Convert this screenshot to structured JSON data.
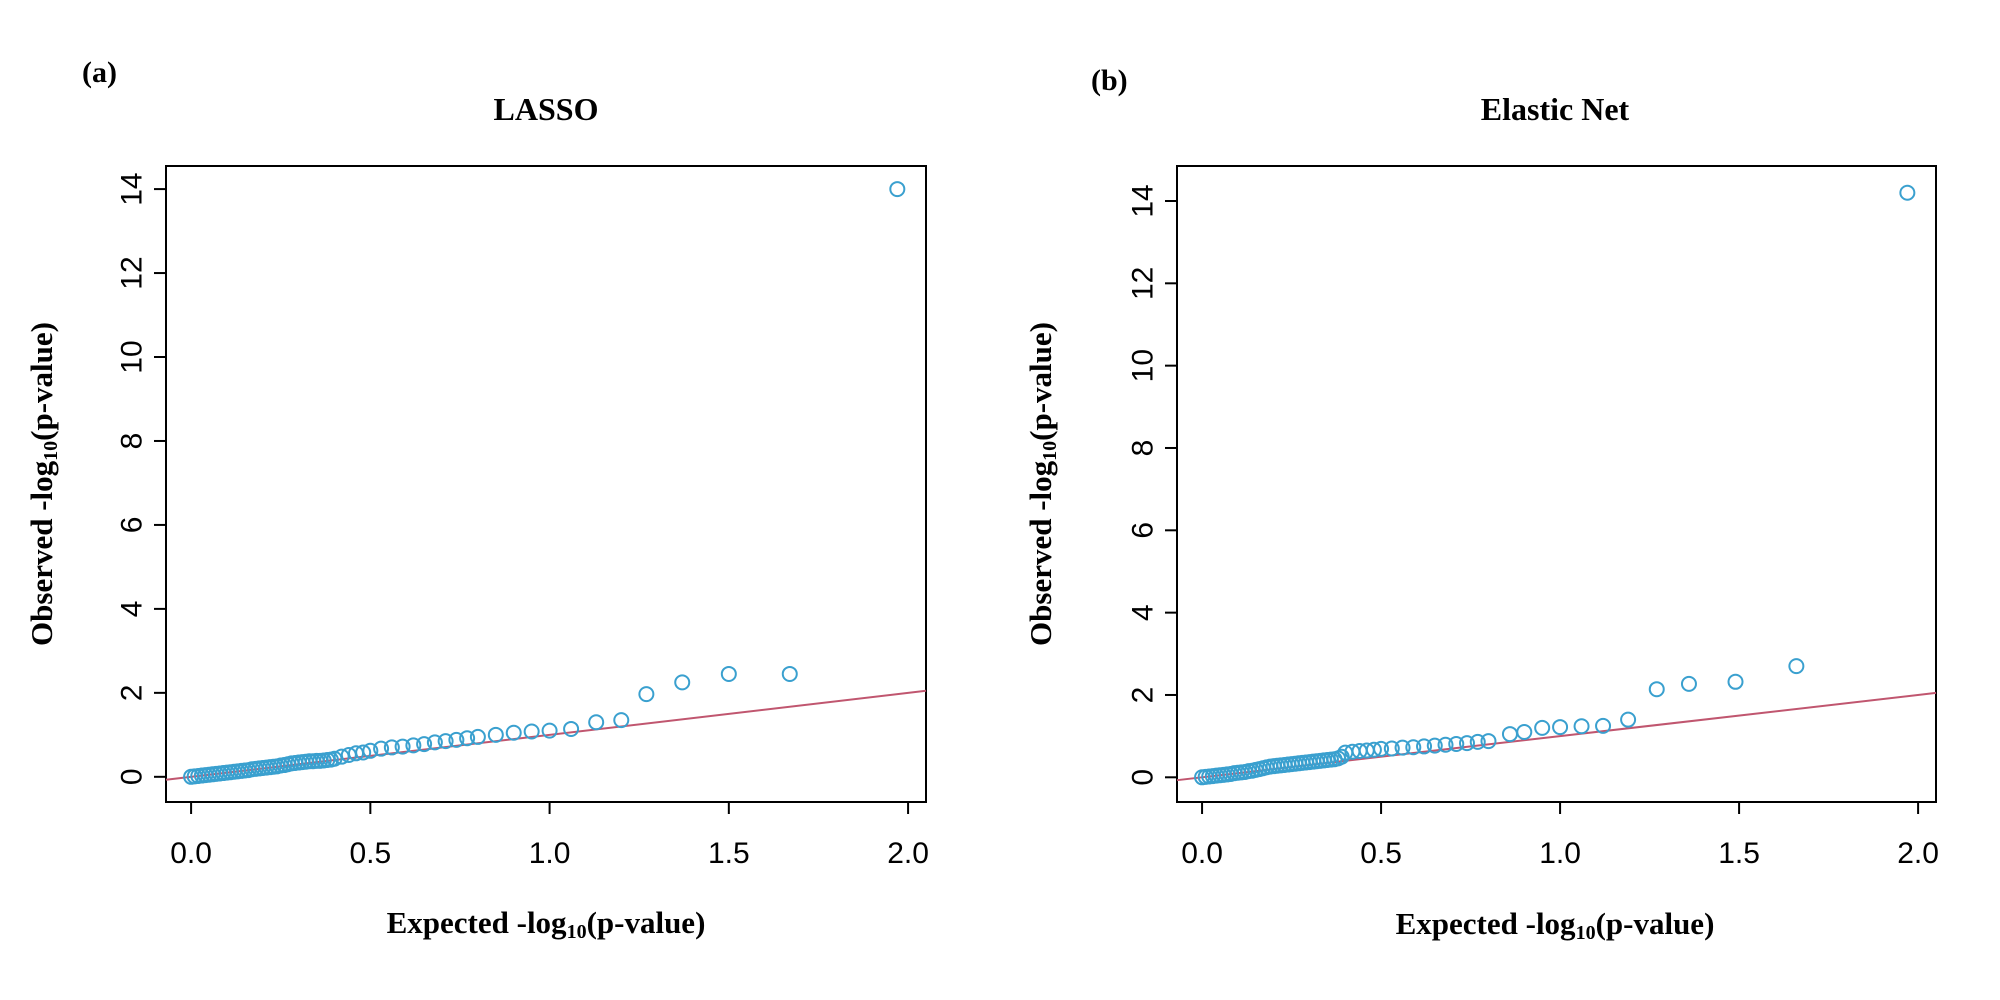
{
  "chart_data": [
    {
      "type": "scatter",
      "panel_label": "(a)",
      "title": "LASSO",
      "xlabel": {
        "pre": "Expected -log",
        "sub": "10",
        "post": "(p-value)"
      },
      "ylabel": {
        "pre": "Observed -log",
        "sub": "10",
        "post": "(p-value)"
      },
      "xlim": [
        -0.07,
        2.05
      ],
      "ylim": [
        -0.6,
        14.55
      ],
      "xticks": [
        0.0,
        0.5,
        1.0,
        1.5,
        2.0
      ],
      "xtick_labels": [
        "0.0",
        "0.5",
        "1.0",
        "1.5",
        "2.0"
      ],
      "yticks": [
        0,
        2,
        4,
        6,
        8,
        10,
        12,
        14
      ],
      "ytick_labels": [
        "0",
        "2",
        "4",
        "6",
        "8",
        "10",
        "12",
        "14"
      ],
      "reference_line": {
        "slope": 1,
        "intercept": 0,
        "color": "#c0566f"
      },
      "point_color": "#3aa0cf",
      "points": [
        [
          0.0,
          0.0
        ],
        [
          0.01,
          0.01
        ],
        [
          0.02,
          0.02
        ],
        [
          0.03,
          0.03
        ],
        [
          0.04,
          0.04
        ],
        [
          0.05,
          0.05
        ],
        [
          0.06,
          0.06
        ],
        [
          0.07,
          0.07
        ],
        [
          0.08,
          0.08
        ],
        [
          0.09,
          0.09
        ],
        [
          0.1,
          0.1
        ],
        [
          0.11,
          0.11
        ],
        [
          0.12,
          0.12
        ],
        [
          0.13,
          0.13
        ],
        [
          0.14,
          0.14
        ],
        [
          0.15,
          0.15
        ],
        [
          0.16,
          0.16
        ],
        [
          0.17,
          0.18
        ],
        [
          0.18,
          0.19
        ],
        [
          0.19,
          0.2
        ],
        [
          0.2,
          0.21
        ],
        [
          0.21,
          0.22
        ],
        [
          0.22,
          0.23
        ],
        [
          0.23,
          0.24
        ],
        [
          0.24,
          0.25
        ],
        [
          0.25,
          0.27
        ],
        [
          0.26,
          0.28
        ],
        [
          0.27,
          0.3
        ],
        [
          0.28,
          0.32
        ],
        [
          0.29,
          0.33
        ],
        [
          0.3,
          0.34
        ],
        [
          0.31,
          0.35
        ],
        [
          0.32,
          0.36
        ],
        [
          0.33,
          0.37
        ],
        [
          0.34,
          0.37
        ],
        [
          0.35,
          0.38
        ],
        [
          0.36,
          0.38
        ],
        [
          0.37,
          0.39
        ],
        [
          0.38,
          0.4
        ],
        [
          0.39,
          0.41
        ],
        [
          0.4,
          0.43
        ],
        [
          0.42,
          0.48
        ],
        [
          0.44,
          0.52
        ],
        [
          0.46,
          0.56
        ],
        [
          0.48,
          0.58
        ],
        [
          0.5,
          0.62
        ],
        [
          0.53,
          0.67
        ],
        [
          0.56,
          0.7
        ],
        [
          0.59,
          0.72
        ],
        [
          0.62,
          0.75
        ],
        [
          0.65,
          0.78
        ],
        [
          0.68,
          0.82
        ],
        [
          0.71,
          0.85
        ],
        [
          0.74,
          0.88
        ],
        [
          0.77,
          0.92
        ],
        [
          0.8,
          0.95
        ],
        [
          0.85,
          1.0
        ],
        [
          0.9,
          1.05
        ],
        [
          0.95,
          1.08
        ],
        [
          1.0,
          1.1
        ],
        [
          1.06,
          1.14
        ],
        [
          1.13,
          1.3
        ],
        [
          1.2,
          1.35
        ],
        [
          1.27,
          1.97
        ],
        [
          1.37,
          2.25
        ],
        [
          1.5,
          2.45
        ],
        [
          1.67,
          2.45
        ],
        [
          1.97,
          14.0
        ]
      ]
    },
    {
      "type": "scatter",
      "panel_label": "(b)",
      "title": "Elastic Net",
      "xlabel": {
        "pre": "Expected -log",
        "sub": "10",
        "post": "(p-value)"
      },
      "ylabel": {
        "pre": "Observed -log",
        "sub": "10",
        "post": "(p-value)"
      },
      "xlim": [
        -0.07,
        2.05
      ],
      "ylim": [
        -0.6,
        14.85
      ],
      "xticks": [
        0.0,
        0.5,
        1.0,
        1.5,
        2.0
      ],
      "xtick_labels": [
        "0.0",
        "0.5",
        "1.0",
        "1.5",
        "2.0"
      ],
      "yticks": [
        0,
        2,
        4,
        6,
        8,
        10,
        12,
        14
      ],
      "ytick_labels": [
        "0",
        "2",
        "4",
        "6",
        "8",
        "10",
        "12",
        "14"
      ],
      "reference_line": {
        "slope": 1,
        "intercept": 0,
        "color": "#c0566f"
      },
      "point_color": "#3aa0cf",
      "points": [
        [
          0.0,
          0.0
        ],
        [
          0.01,
          0.01
        ],
        [
          0.02,
          0.02
        ],
        [
          0.03,
          0.03
        ],
        [
          0.04,
          0.04
        ],
        [
          0.05,
          0.05
        ],
        [
          0.06,
          0.06
        ],
        [
          0.07,
          0.07
        ],
        [
          0.08,
          0.08
        ],
        [
          0.09,
          0.1
        ],
        [
          0.1,
          0.11
        ],
        [
          0.11,
          0.12
        ],
        [
          0.12,
          0.13
        ],
        [
          0.13,
          0.15
        ],
        [
          0.14,
          0.16
        ],
        [
          0.15,
          0.18
        ],
        [
          0.16,
          0.2
        ],
        [
          0.17,
          0.22
        ],
        [
          0.18,
          0.24
        ],
        [
          0.19,
          0.26
        ],
        [
          0.2,
          0.27
        ],
        [
          0.21,
          0.28
        ],
        [
          0.22,
          0.29
        ],
        [
          0.23,
          0.3
        ],
        [
          0.24,
          0.31
        ],
        [
          0.25,
          0.32
        ],
        [
          0.26,
          0.33
        ],
        [
          0.27,
          0.34
        ],
        [
          0.28,
          0.35
        ],
        [
          0.29,
          0.36
        ],
        [
          0.3,
          0.37
        ],
        [
          0.31,
          0.38
        ],
        [
          0.32,
          0.39
        ],
        [
          0.33,
          0.4
        ],
        [
          0.34,
          0.41
        ],
        [
          0.35,
          0.42
        ],
        [
          0.36,
          0.43
        ],
        [
          0.37,
          0.44
        ],
        [
          0.38,
          0.46
        ],
        [
          0.39,
          0.5
        ],
        [
          0.4,
          0.6
        ],
        [
          0.42,
          0.62
        ],
        [
          0.44,
          0.64
        ],
        [
          0.46,
          0.65
        ],
        [
          0.48,
          0.67
        ],
        [
          0.5,
          0.69
        ],
        [
          0.53,
          0.7
        ],
        [
          0.56,
          0.72
        ],
        [
          0.59,
          0.73
        ],
        [
          0.62,
          0.75
        ],
        [
          0.65,
          0.77
        ],
        [
          0.68,
          0.79
        ],
        [
          0.71,
          0.81
        ],
        [
          0.74,
          0.83
        ],
        [
          0.77,
          0.86
        ],
        [
          0.8,
          0.88
        ],
        [
          0.86,
          1.05
        ],
        [
          0.9,
          1.1
        ],
        [
          0.95,
          1.2
        ],
        [
          1.0,
          1.22
        ],
        [
          1.06,
          1.24
        ],
        [
          1.12,
          1.25
        ],
        [
          1.19,
          1.4
        ],
        [
          1.27,
          2.14
        ],
        [
          1.36,
          2.27
        ],
        [
          1.49,
          2.32
        ],
        [
          1.66,
          2.7
        ],
        [
          1.97,
          14.2
        ]
      ]
    }
  ]
}
